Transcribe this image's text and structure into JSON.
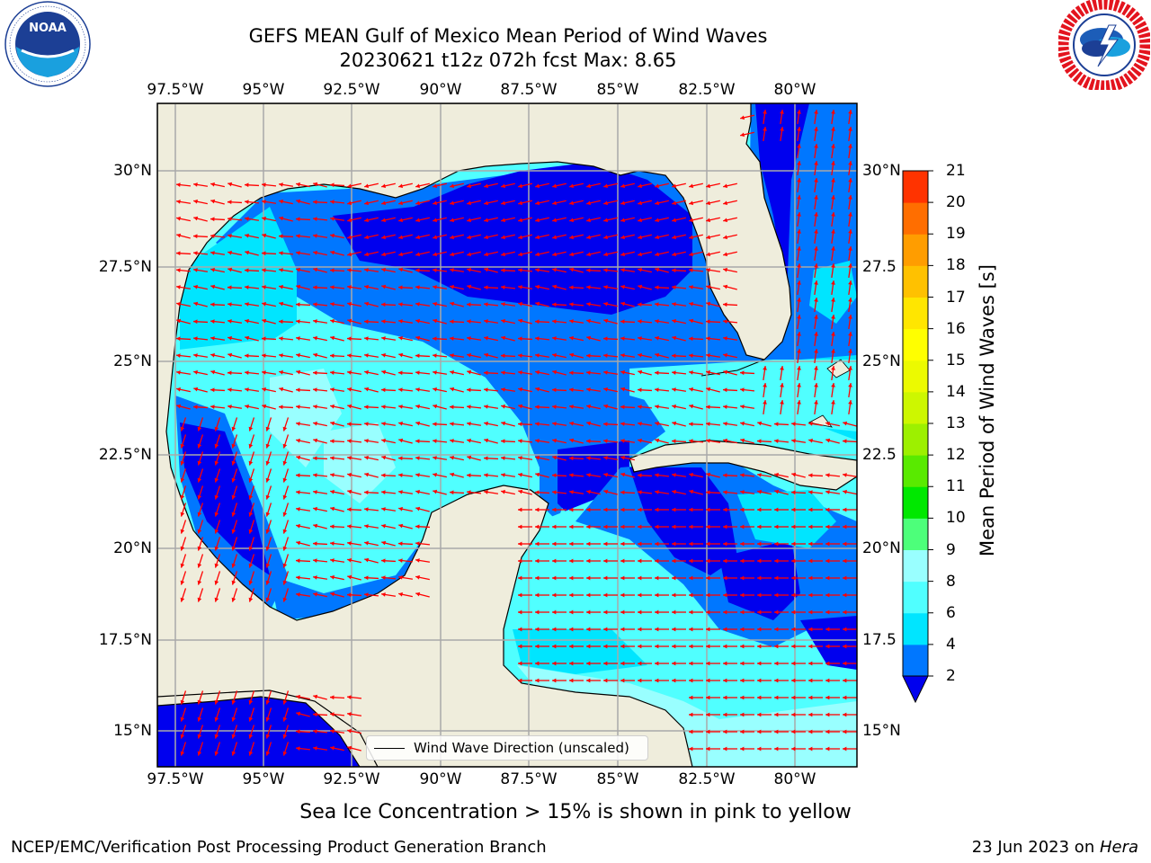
{
  "title": {
    "line1": "GEFS MEAN Gulf of Mexico Mean Period of Wind Waves",
    "line2": "20230621 t12z 072h fcst   Max: 8.65"
  },
  "logos": {
    "left": {
      "name": "noaa-logo",
      "text": "NOAA",
      "ring_text": "NATIONAL OCEANIC AND ATMOSPHERIC ADMINISTRATION · U.S. DEPARTMENT OF COMMERCE"
    },
    "right": {
      "name": "nws-logo",
      "ring_text": "NATIONAL WEATHER SERVICE"
    }
  },
  "map": {
    "lon_ticks": [
      "97.5°W",
      "95°W",
      "92.5°W",
      "90°W",
      "87.5°W",
      "85°W",
      "82.5°W",
      "80°W"
    ],
    "lat_ticks_left": [
      "30°N",
      "27.5°N",
      "25°N",
      "22.5°N",
      "20°N",
      "17.5°N",
      "15°N"
    ],
    "lat_ticks_right": [
      "30°N",
      "27.5",
      "25°N",
      "22.5",
      "20°N",
      "17.5",
      "15°N"
    ],
    "land_color": "#efeddc",
    "ocean_palette": [
      "#0000ee",
      "#0077ff",
      "#00e5ff",
      "#50ffff",
      "#99ffff"
    ],
    "arrow_color": "#ff0000",
    "legend": "Wind Wave Direction (unscaled)"
  },
  "colorbar": {
    "label": "Mean Period of Wind Waves [s]",
    "ticks": [
      "2",
      "4",
      "6",
      "8",
      "9",
      "10",
      "11",
      "12",
      "13",
      "14",
      "15",
      "16",
      "17",
      "18",
      "19",
      "20",
      "21"
    ],
    "colors": [
      "#0077ff",
      "#00e5ff",
      "#50ffff",
      "#99ffff",
      "#4dff7a",
      "#00e800",
      "#59ea00",
      "#9df000",
      "#cdf700",
      "#ecfa00",
      "#ffff00",
      "#ffe600",
      "#ffc100",
      "#ff9d00",
      "#ff6e00",
      "#ff3300",
      "#ff0000"
    ],
    "extend_color": "#0000ee"
  },
  "note": "Sea Ice Concentration > 15% is shown in pink to yellow",
  "footer": {
    "left": "NCEP/EMC/Verification Post Processing Product Generation Branch",
    "right_date": "23 Jun 2023 on ",
    "right_host": "Hera"
  }
}
